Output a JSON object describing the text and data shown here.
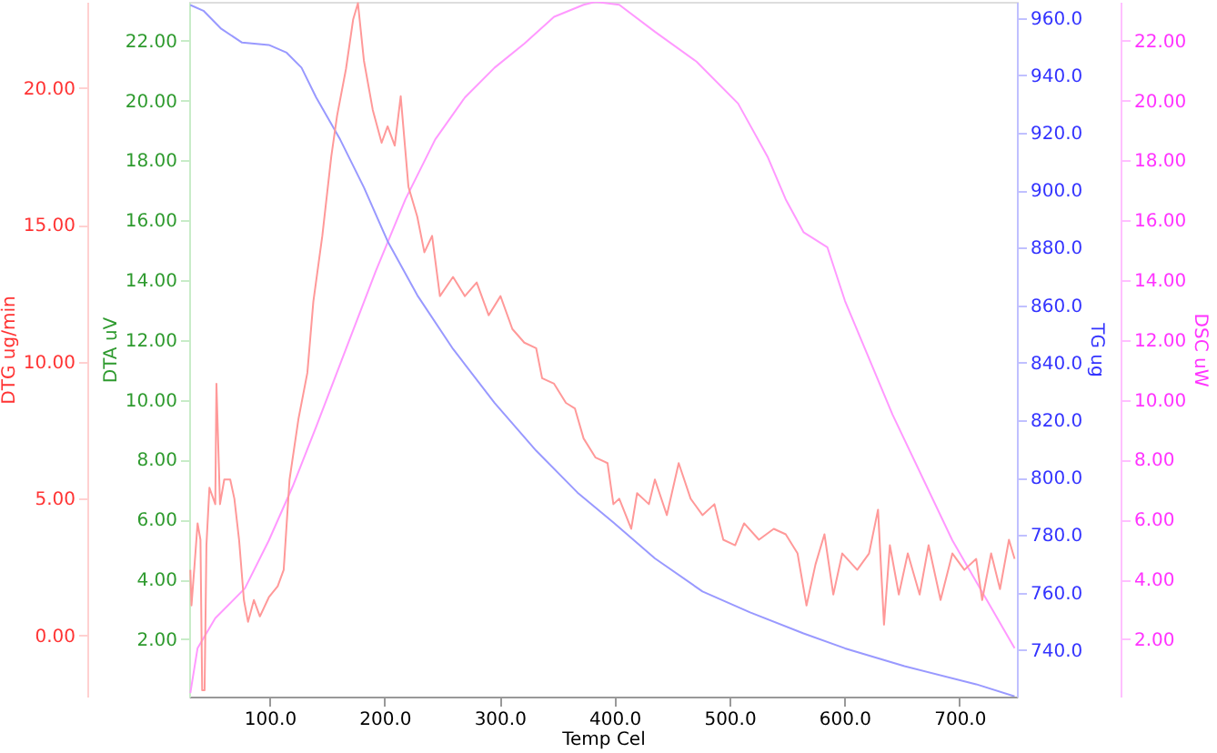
{
  "chart_data": {
    "type": "line",
    "xlabel": "Temp Cel",
    "ylabel": "DTA uV",
    "y2label": "TG ug",
    "y3label": "DTG ug/min",
    "annotations": [
      "DSC uW"
    ],
    "xlim": [
      30,
      750
    ],
    "xticks": [
      {
        "value": 100,
        "label": "100.0"
      },
      {
        "value": 200,
        "label": "200.0"
      },
      {
        "value": 300,
        "label": "300.0"
      },
      {
        "value": 400,
        "label": "400.0"
      },
      {
        "value": 500,
        "label": "500.0"
      },
      {
        "value": 600,
        "label": "600.0"
      },
      {
        "value": 700,
        "label": "700.0"
      }
    ],
    "ylim": [
      0.08,
      23.3
    ],
    "yticks": [
      {
        "value": 2,
        "label": "2.00"
      },
      {
        "value": 4,
        "label": "4.00"
      },
      {
        "value": 6,
        "label": "6.00"
      },
      {
        "value": 8,
        "label": "8.00"
      },
      {
        "value": 10,
        "label": "10.00"
      },
      {
        "value": 12,
        "label": "12.00"
      },
      {
        "value": 14,
        "label": "14.00"
      },
      {
        "value": 16,
        "label": "16.00"
      },
      {
        "value": 18,
        "label": "18.00"
      },
      {
        "value": 20,
        "label": "20.00"
      },
      {
        "value": 22,
        "label": "22.00"
      }
    ],
    "y2lim": [
      723.8,
      965.6
    ],
    "y2ticks": [
      {
        "value": 740,
        "label": "740.0"
      },
      {
        "value": 760,
        "label": "760.0"
      },
      {
        "value": 780,
        "label": "780.0"
      },
      {
        "value": 800,
        "label": "800.0"
      },
      {
        "value": 820,
        "label": "820.0"
      },
      {
        "value": 840,
        "label": "840.0"
      },
      {
        "value": 860,
        "label": "860.0"
      },
      {
        "value": 880,
        "label": "880.0"
      },
      {
        "value": 900,
        "label": "900.0"
      },
      {
        "value": 920,
        "label": "920.0"
      },
      {
        "value": 940,
        "label": "940.0"
      },
      {
        "value": 960,
        "label": "960.0"
      }
    ],
    "y3lim": [
      -2.23,
      23.15
    ],
    "y3ticks": [
      {
        "value": 0,
        "label": "0.00"
      },
      {
        "value": 5,
        "label": "5.00"
      },
      {
        "value": 10,
        "label": "10.00"
      },
      {
        "value": 15,
        "label": "15.00"
      },
      {
        "value": 20,
        "label": "20.00"
      }
    ],
    "marker": "none",
    "line_style": "solid",
    "series": [
      {
        "color": "#ff99ff",
        "x": [
          31,
          37.3,
          52.7,
          78.5,
          99.3,
          120,
          140.5,
          166.4,
          192.3,
          218.1,
          244,
          269.8,
          295.7,
          321.5,
          347.4,
          373.1,
          383.5,
          404.1,
          435.1,
          471.3,
          507.5,
          533.4,
          548.9,
          564.4,
          585.1,
          600.5,
          641.9,
          693.9,
          748
        ],
        "values": [
          0.2,
          1.7,
          2.7,
          3.7,
          5.3,
          7.1,
          9.1,
          11.7,
          14.3,
          16.7,
          18.7,
          20.1,
          21.1,
          21.9,
          22.8,
          23.2,
          23.3,
          23.2,
          22.3,
          21.3,
          19.9,
          18.1,
          16.7,
          15.6,
          15.1,
          13.3,
          9.5,
          5.3,
          1.7
        ]
      },
      {
        "axis": "y2",
        "color": "#9999ff",
        "x": [
          31,
          42.4,
          57.9,
          76,
          99.3,
          114.8,
          127.7,
          140.5,
          161.3,
          182,
          202.6,
          228.4,
          259.5,
          295.7,
          331.8,
          367.8,
          399,
          435.1,
          476.5,
          517.9,
          564.4,
          600.5,
          652.2,
          714.6,
          748
        ],
        "values": [
          964.5,
          962.5,
          956.2,
          951.4,
          950.6,
          947.9,
          942.7,
          932.3,
          917.7,
          901,
          882.3,
          863.5,
          844.8,
          826,
          809.4,
          794.8,
          784.4,
          771.9,
          760.4,
          753.1,
          745.8,
          740.6,
          734.4,
          728.1,
          723.9
        ]
      },
      {
        "axis": "y3",
        "color": "#ff9999",
        "x": [
          31,
          32,
          34.7,
          37.3,
          39.8,
          41.3,
          43.4,
          45,
          47.6,
          52.7,
          53.7,
          56.8,
          60.5,
          65.7,
          69.3,
          73.4,
          77.6,
          81.2,
          86.3,
          91.5,
          99.3,
          107,
          112.2,
          117.3,
          125,
          132.8,
          138,
          145.8,
          153.6,
          158.7,
          166.4,
          172.6,
          176.8,
          182,
          189.7,
          197.4,
          202.6,
          208.8,
          214,
          220.7,
          228.4,
          234.6,
          241.3,
          248.1,
          259.5,
          269.8,
          280.1,
          290.5,
          300.8,
          311.1,
          321.5,
          331.8,
          337,
          347.4,
          357.7,
          365.5,
          373.1,
          383.5,
          393.9,
          399,
          404.1,
          414.5,
          419.6,
          429.9,
          435.1,
          445.5,
          455.8,
          466.2,
          476.5,
          486.9,
          494.6,
          504.9,
          512.7,
          525.6,
          538.5,
          548.9,
          559.2,
          567,
          574.8,
          582.6,
          590.3,
          598.1,
          611.1,
          621.4,
          629.2,
          634.4,
          639.5,
          647.3,
          655.1,
          665.4,
          673.2,
          683.6,
          693.9,
          704.3,
          714.6,
          719.8,
          727.6,
          735.3,
          743.1,
          748
        ],
        "values": [
          2.4,
          1.1,
          2.6,
          4.1,
          3.5,
          -2.0,
          -2.0,
          3.3,
          5.4,
          4.8,
          9.2,
          4.8,
          5.7,
          5.7,
          5.0,
          3.5,
          1.3,
          0.5,
          1.3,
          0.7,
          1.4,
          1.8,
          2.4,
          5.7,
          7.9,
          9.6,
          12.2,
          14.6,
          17.5,
          19.0,
          20.7,
          22.5,
          23.1,
          21.0,
          19.2,
          18.0,
          18.6,
          17.9,
          19.7,
          16.4,
          15.3,
          14.0,
          14.6,
          12.4,
          13.1,
          12.4,
          12.9,
          11.7,
          12.4,
          11.2,
          10.7,
          10.5,
          9.4,
          9.2,
          8.5,
          8.3,
          7.2,
          6.5,
          6.3,
          4.8,
          5.0,
          3.9,
          5.2,
          4.8,
          5.7,
          4.4,
          6.3,
          5.0,
          4.4,
          4.8,
          3.5,
          3.3,
          4.1,
          3.5,
          3.9,
          3.7,
          3.0,
          1.1,
          2.6,
          3.7,
          1.5,
          3.0,
          2.4,
          3.0,
          4.6,
          0.4,
          3.3,
          1.5,
          3.0,
          1.5,
          3.3,
          1.3,
          3.0,
          2.4,
          2.8,
          1.3,
          3.0,
          1.7,
          3.5,
          2.8
        ]
      }
    ]
  }
}
